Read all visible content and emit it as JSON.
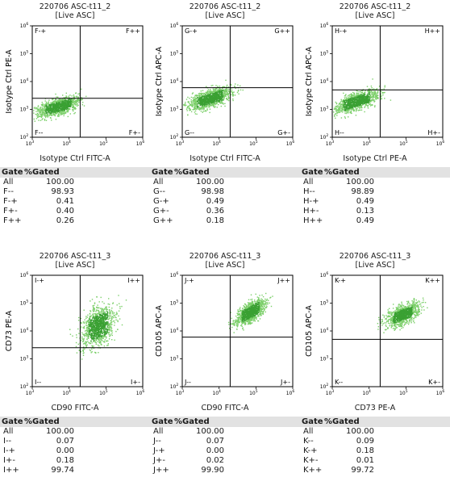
{
  "header_labels": {
    "gate": "Gate",
    "gated": "%Gated"
  },
  "colors": {
    "dots": "#3aa132",
    "dots_light": "#7ccf6a",
    "line": "#000000"
  },
  "chart_data": [
    {
      "type": "scatter",
      "title": "220706 ASC-t11_2",
      "subtitle": "[Live ASC]",
      "xlabel": "Isotype Ctrl FITC-A",
      "ylabel": "Isotype Ctrl PE-A",
      "xscale": "log",
      "yscale": "log",
      "xlim": [
        1000,
        1000000
      ],
      "ylim": [
        100,
        1000000
      ],
      "gate": {
        "x": 20000,
        "y": 2500
      },
      "cluster": {
        "x": 5000,
        "y": 1300,
        "spread_x": 0.3,
        "spread_y": 0.15,
        "tilt": 0.35
      },
      "quadrant_labels": {
        "tl": "F-+",
        "tr": "F++",
        "bl": "F--",
        "br": "F+-"
      },
      "stats": [
        {
          "gate": "All",
          "pct": "100.00"
        },
        {
          "gate": "F--",
          "pct": "98.93"
        },
        {
          "gate": "F-+",
          "pct": "0.41"
        },
        {
          "gate": "F+-",
          "pct": "0.40"
        },
        {
          "gate": "F++",
          "pct": "0.26"
        }
      ]
    },
    {
      "type": "scatter",
      "title": "220706 ASC-t11_2",
      "subtitle": "[Live ASC]",
      "xlabel": "Isotype Ctrl FITC-A",
      "ylabel": "Isotype Ctrl APC-A",
      "xscale": "log",
      "yscale": "log",
      "xlim": [
        1000,
        1000000
      ],
      "ylim": [
        100,
        1000000
      ],
      "gate": {
        "x": 20000,
        "y": 6000
      },
      "cluster": {
        "x": 5500,
        "y": 2500,
        "spread_x": 0.3,
        "spread_y": 0.16,
        "tilt": 0.4
      },
      "quadrant_labels": {
        "tl": "G-+",
        "tr": "G++",
        "bl": "G--",
        "br": "G+-"
      },
      "stats": [
        {
          "gate": "All",
          "pct": "100.00"
        },
        {
          "gate": "G--",
          "pct": "98.98"
        },
        {
          "gate": "G-+",
          "pct": "0.49"
        },
        {
          "gate": "G+-",
          "pct": "0.36"
        },
        {
          "gate": "G++",
          "pct": "0.18"
        }
      ]
    },
    {
      "type": "scatter",
      "title": "220706 ASC-t11_2",
      "subtitle": "[Live ASC]",
      "xlabel": "Isotype Ctrl PE-A",
      "ylabel": "Isotype Ctrl APC-A",
      "xscale": "log",
      "yscale": "log",
      "xlim": [
        1000,
        1000000
      ],
      "ylim": [
        100,
        1000000
      ],
      "gate": {
        "x": 20000,
        "y": 5000
      },
      "cluster": {
        "x": 4500,
        "y": 2000,
        "spread_x": 0.3,
        "spread_y": 0.16,
        "tilt": 0.45
      },
      "quadrant_labels": {
        "tl": "H-+",
        "tr": "H++",
        "bl": "H--",
        "br": "H+-"
      },
      "stats": [
        {
          "gate": "All",
          "pct": "100.00"
        },
        {
          "gate": "H--",
          "pct": "98.89"
        },
        {
          "gate": "H-+",
          "pct": "0.49"
        },
        {
          "gate": "H+-",
          "pct": "0.13"
        },
        {
          "gate": "H++",
          "pct": "0.49"
        }
      ]
    },
    {
      "type": "scatter",
      "title": "220706 ASC-t11_3",
      "subtitle": "[Live ASC]",
      "xlabel": "CD90 FITC-A",
      "ylabel": "CD73 PE-A",
      "xscale": "log",
      "yscale": "log",
      "xlim": [
        1000,
        1000000
      ],
      "ylim": [
        100,
        1000000
      ],
      "gate": {
        "x": 20000,
        "y": 2500
      },
      "cluster": {
        "x": 60000,
        "y": 15000,
        "spread_x": 0.22,
        "spread_y": 0.35,
        "tilt": 0.6
      },
      "quadrant_labels": {
        "tl": "I-+",
        "tr": "I++",
        "bl": "I--",
        "br": "I+-"
      },
      "stats": [
        {
          "gate": "All",
          "pct": "100.00"
        },
        {
          "gate": "I--",
          "pct": "0.07"
        },
        {
          "gate": "I-+",
          "pct": "0.00"
        },
        {
          "gate": "I+-",
          "pct": "0.18"
        },
        {
          "gate": "I++",
          "pct": "99.74"
        }
      ]
    },
    {
      "type": "scatter",
      "title": "220706 ASC-t11_3",
      "subtitle": "[Live ASC]",
      "xlabel": "CD90 FITC-A",
      "ylabel": "CD105 APC-A",
      "xscale": "log",
      "yscale": "log",
      "xlim": [
        1000,
        1000000
      ],
      "ylim": [
        100,
        1000000
      ],
      "gate": {
        "x": 20000,
        "y": 6000
      },
      "cluster": {
        "x": 70000,
        "y": 50000,
        "spread_x": 0.2,
        "spread_y": 0.18,
        "tilt": 0.7
      },
      "quadrant_labels": {
        "tl": "J-+",
        "tr": "J++",
        "bl": "J--",
        "br": "J+-"
      },
      "stats": [
        {
          "gate": "All",
          "pct": "100.00"
        },
        {
          "gate": "J--",
          "pct": "0.07"
        },
        {
          "gate": "J-+",
          "pct": "0.00"
        },
        {
          "gate": "J+-",
          "pct": "0.02"
        },
        {
          "gate": "J++",
          "pct": "99.90"
        }
      ]
    },
    {
      "type": "scatter",
      "title": "220706 ASC-t11_3",
      "subtitle": "[Live ASC]",
      "xlabel": "CD73 PE-A",
      "ylabel": "CD105 APC-A",
      "xscale": "log",
      "yscale": "log",
      "xlim": [
        1000,
        1000000
      ],
      "ylim": [
        100,
        1000000
      ],
      "gate": {
        "x": 20000,
        "y": 5000
      },
      "cluster": {
        "x": 80000,
        "y": 40000,
        "spread_x": 0.22,
        "spread_y": 0.16,
        "tilt": 0.5
      },
      "quadrant_labels": {
        "tl": "K-+",
        "tr": "K++",
        "bl": "K--",
        "br": "K+-"
      },
      "stats": [
        {
          "gate": "All",
          "pct": "100.00"
        },
        {
          "gate": "K--",
          "pct": "0.09"
        },
        {
          "gate": "K-+",
          "pct": "0.18"
        },
        {
          "gate": "K+-",
          "pct": "0.01"
        },
        {
          "gate": "K++",
          "pct": "99.72"
        }
      ]
    }
  ]
}
